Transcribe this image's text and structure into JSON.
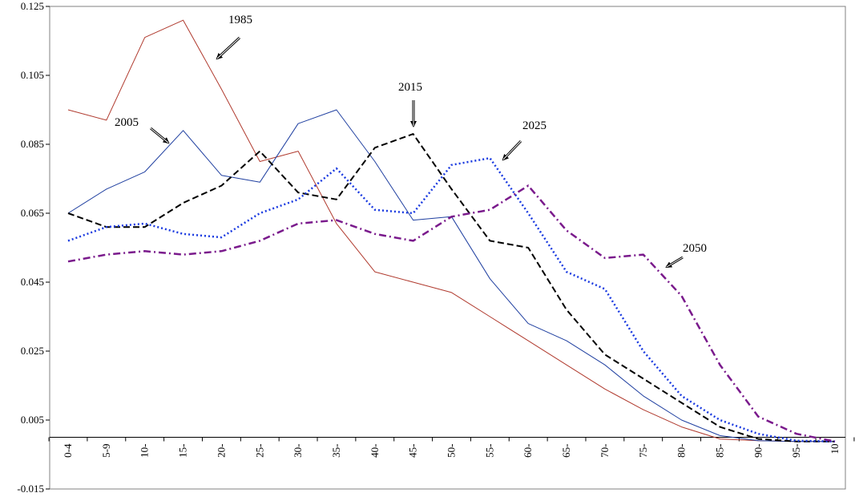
{
  "chart_data": {
    "type": "line",
    "title": "",
    "xlabel": "",
    "ylabel": "",
    "ylim": [
      -0.015,
      0.125
    ],
    "yticks": [
      "0.125",
      "0.105",
      "0.085",
      "0.065",
      "0.045",
      "0.025",
      "0.005",
      "-0.015"
    ],
    "yticks_values": [
      0.125,
      0.105,
      0.085,
      0.065,
      0.045,
      0.025,
      0.005,
      -0.015
    ],
    "grid": false,
    "legend": "none (series identified by arrow annotations)",
    "categories": [
      "0-4",
      "5-9",
      "10-",
      "15-",
      "20-",
      "25-",
      "30-",
      "35-",
      "40-",
      "45-",
      "50-",
      "55-",
      "60-",
      "65-",
      "70-",
      "75-",
      "80-",
      "85-",
      "90-",
      "95-",
      "10"
    ],
    "series": [
      {
        "name": "1985",
        "color": "#b03a2e",
        "style": "solid-thin",
        "values": [
          0.095,
          0.092,
          0.116,
          0.121,
          0.101,
          0.08,
          0.083,
          0.062,
          0.048,
          0.045,
          0.042,
          0.035,
          0.028,
          0.021,
          0.014,
          0.008,
          0.003,
          -0.0005,
          -0.001,
          -0.0012,
          -0.0012
        ]
      },
      {
        "name": "2005",
        "color": "#1f3fa0",
        "style": "solid-thin",
        "values": [
          0.065,
          0.072,
          0.077,
          0.089,
          0.076,
          0.074,
          0.091,
          0.095,
          0.08,
          0.063,
          0.064,
          0.046,
          0.033,
          0.028,
          0.021,
          0.012,
          0.005,
          0.0005,
          -0.001,
          -0.0012,
          -0.0012
        ]
      },
      {
        "name": "2015",
        "color": "#000000",
        "style": "dashed-bold",
        "values": [
          0.065,
          0.061,
          0.061,
          0.068,
          0.073,
          0.083,
          0.071,
          0.069,
          0.084,
          0.088,
          0.072,
          0.057,
          0.055,
          0.037,
          0.024,
          0.017,
          0.01,
          0.003,
          -0.0005,
          -0.0012,
          -0.0012
        ]
      },
      {
        "name": "2025",
        "color": "#1a3ae0",
        "style": "dotted-bold",
        "values": [
          0.057,
          0.061,
          0.062,
          0.059,
          0.058,
          0.065,
          0.069,
          0.078,
          0.066,
          0.065,
          0.079,
          0.081,
          0.065,
          0.048,
          0.043,
          0.025,
          0.012,
          0.005,
          0.001,
          -0.001,
          -0.0012
        ]
      },
      {
        "name": "2050",
        "color": "#7a1a8c",
        "style": "dashdot-bold",
        "values": [
          0.051,
          0.053,
          0.054,
          0.053,
          0.054,
          0.057,
          0.062,
          0.063,
          0.059,
          0.057,
          0.064,
          0.066,
          0.073,
          0.06,
          0.052,
          0.053,
          0.041,
          0.021,
          0.006,
          0.001,
          -0.0012
        ]
      }
    ],
    "annotations": [
      {
        "label": "1985",
        "series": "1985"
      },
      {
        "label": "2005",
        "series": "2005"
      },
      {
        "label": "2015",
        "series": "2015"
      },
      {
        "label": "2025",
        "series": "2025"
      },
      {
        "label": "2050",
        "series": "2050"
      }
    ]
  }
}
